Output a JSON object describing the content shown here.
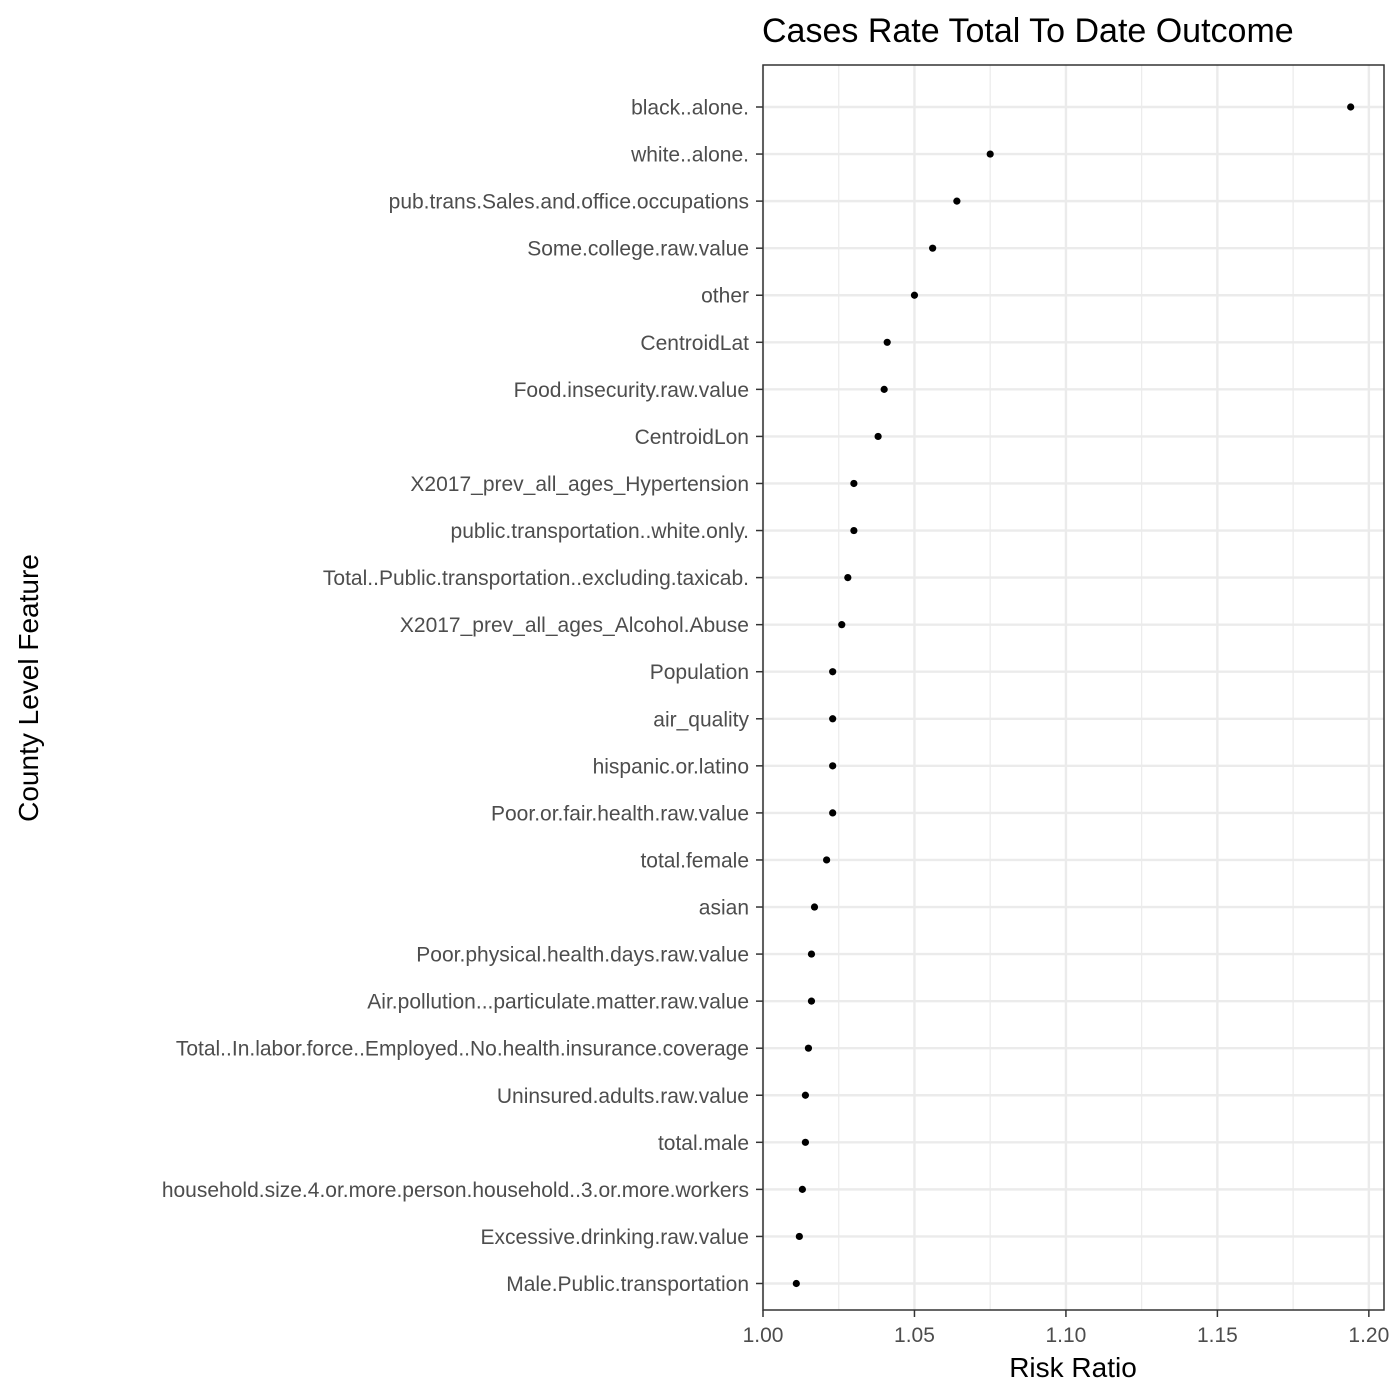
{
  "chart_data": {
    "type": "scatter",
    "title": "Cases Rate Total To Date Outcome",
    "xlabel": "Risk Ratio",
    "ylabel": "County Level Feature",
    "xlim": [
      1.0,
      1.205
    ],
    "xticks": [
      1.0,
      1.05,
      1.1,
      1.15,
      1.2
    ],
    "xtick_labels": [
      "1.00",
      "1.05",
      "1.10",
      "1.15",
      "1.20"
    ],
    "grid": true,
    "legend": "none",
    "point_color": "#000000",
    "grid_color": "#ebebeb",
    "categories": [
      "black..alone.",
      "white..alone.",
      "pub.trans.Sales.and.office.occupations",
      "Some.college.raw.value",
      "other",
      "CentroidLat",
      "Food.insecurity.raw.value",
      "CentroidLon",
      "X2017_prev_all_ages_Hypertension",
      "public.transportation..white.only.",
      "Total..Public.transportation..excluding.taxicab.",
      "X2017_prev_all_ages_Alcohol.Abuse",
      "Population",
      "air_quality",
      "hispanic.or.latino",
      "Poor.or.fair.health.raw.value",
      "total.female",
      "asian",
      "Poor.physical.health.days.raw.value",
      "Air.pollution...particulate.matter.raw.value",
      "Total..In.labor.force..Employed..No.health.insurance.coverage",
      "Uninsured.adults.raw.value",
      "total.male",
      "household.size.4.or.more.person.household..3.or.more.workers",
      "Excessive.drinking.raw.value",
      "Male.Public.transportation"
    ],
    "values": [
      1.194,
      1.075,
      1.064,
      1.056,
      1.05,
      1.041,
      1.04,
      1.038,
      1.03,
      1.03,
      1.028,
      1.026,
      1.023,
      1.023,
      1.023,
      1.023,
      1.021,
      1.017,
      1.016,
      1.016,
      1.015,
      1.014,
      1.014,
      1.013,
      1.012,
      1.011
    ]
  }
}
